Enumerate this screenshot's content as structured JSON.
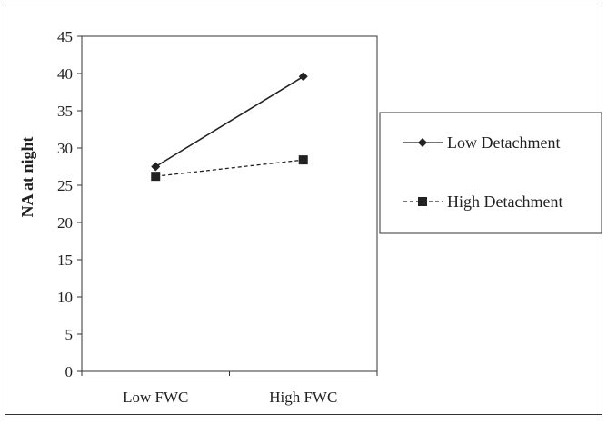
{
  "chart_data": {
    "type": "line",
    "title": "",
    "xlabel": "",
    "ylabel": "NA at night",
    "categories": [
      "Low FWC",
      "High FWC"
    ],
    "ylim": [
      0,
      45
    ],
    "yticks": [
      0,
      5,
      10,
      15,
      20,
      25,
      30,
      35,
      40,
      45
    ],
    "grid": false,
    "legend_position": "right",
    "series": [
      {
        "name": "Low Detachment",
        "values": [
          27.5,
          39.6
        ],
        "marker": "diamond",
        "line_style": "solid",
        "color": "#222222"
      },
      {
        "name": "High Detachment",
        "values": [
          26.2,
          28.4
        ],
        "marker": "square",
        "line_style": "dashed",
        "color": "#222222"
      }
    ]
  }
}
